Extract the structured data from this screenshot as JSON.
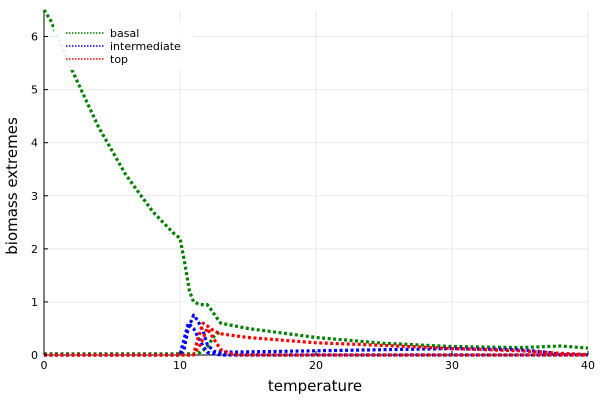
{
  "chart_data": {
    "type": "line",
    "title": "",
    "xlabel": "temperature",
    "ylabel": "biomass extremes",
    "xlim": [
      0,
      40
    ],
    "ylim": [
      0,
      6.5
    ],
    "xticks": [
      0,
      10,
      20,
      30,
      40
    ],
    "yticks": [
      0,
      1,
      2,
      3,
      4,
      5,
      6
    ],
    "grid": true,
    "legend_position": "top-left",
    "series": [
      {
        "name": "basal",
        "color": "#008000",
        "points": [
          [
            0,
            6.5
          ],
          [
            0.5,
            6.3
          ],
          [
            1,
            6.0
          ],
          [
            2,
            5.4
          ],
          [
            4,
            4.3
          ],
          [
            6,
            3.4
          ],
          [
            8,
            2.7
          ],
          [
            9.5,
            2.3
          ],
          [
            10,
            2.2
          ],
          [
            10.3,
            1.8
          ],
          [
            10.7,
            1.2
          ],
          [
            11,
            1.0
          ],
          [
            11.5,
            0.95
          ],
          [
            12,
            0.95
          ],
          [
            12.3,
            0.85
          ],
          [
            12.7,
            0.7
          ],
          [
            13,
            0.6
          ],
          [
            15,
            0.5
          ],
          [
            20,
            0.33
          ],
          [
            25,
            0.22
          ],
          [
            30,
            0.16
          ],
          [
            35,
            0.14
          ],
          [
            38,
            0.17
          ],
          [
            40,
            0.13
          ]
        ]
      },
      {
        "name": "basal",
        "color": "#008000",
        "points": [
          [
            0,
            0.02
          ],
          [
            10,
            0.02
          ],
          [
            11,
            0.02
          ],
          [
            11.5,
            0.05
          ],
          [
            12,
            0.15
          ],
          [
            12.5,
            0.35
          ],
          [
            13,
            0.45
          ]
        ]
      },
      {
        "name": "intermediate",
        "color": "#0000ff",
        "points": [
          [
            0,
            0.0
          ],
          [
            10,
            0.0
          ],
          [
            10.3,
            0.1
          ],
          [
            10.6,
            0.5
          ],
          [
            11,
            0.75
          ],
          [
            11.3,
            0.65
          ],
          [
            11.7,
            0.45
          ],
          [
            12,
            0.2
          ],
          [
            12.5,
            0.07
          ],
          [
            13,
            0.05
          ],
          [
            20,
            0.08
          ],
          [
            25,
            0.1
          ],
          [
            30,
            0.12
          ],
          [
            35,
            0.1
          ],
          [
            37,
            0.05
          ],
          [
            38,
            0.01
          ],
          [
            40,
            0.0
          ]
        ]
      },
      {
        "name": "intermediate",
        "color": "#0000ff",
        "points": [
          [
            0,
            0.0
          ],
          [
            10,
            0.0
          ],
          [
            10.3,
            0.3
          ],
          [
            10.6,
            0.6
          ],
          [
            11,
            0.5
          ],
          [
            11.5,
            0.25
          ],
          [
            12,
            0.05
          ],
          [
            13,
            0.0
          ],
          [
            40,
            0.0
          ]
        ]
      },
      {
        "name": "top",
        "color": "#ff0000",
        "points": [
          [
            0,
            0.0
          ],
          [
            11,
            0.0
          ],
          [
            11.3,
            0.3
          ],
          [
            11.7,
            0.6
          ],
          [
            12,
            0.55
          ],
          [
            12.5,
            0.45
          ],
          [
            13,
            0.4
          ],
          [
            15,
            0.33
          ],
          [
            20,
            0.23
          ],
          [
            25,
            0.18
          ],
          [
            30,
            0.12
          ],
          [
            35,
            0.08
          ],
          [
            38,
            0.03
          ],
          [
            40,
            0.01
          ]
        ]
      },
      {
        "name": "top",
        "color": "#ff0000",
        "points": [
          [
            0,
            0.0
          ],
          [
            11,
            0.0
          ],
          [
            11.5,
            0.2
          ],
          [
            12,
            0.5
          ],
          [
            12.5,
            0.3
          ],
          [
            13,
            0.1
          ],
          [
            14,
            0.0
          ],
          [
            40,
            0.0
          ]
        ]
      }
    ],
    "legend": [
      {
        "label": "basal",
        "color": "#008000"
      },
      {
        "label": "intermediate",
        "color": "#0000ff"
      },
      {
        "label": "top",
        "color": "#ff0000"
      }
    ]
  }
}
